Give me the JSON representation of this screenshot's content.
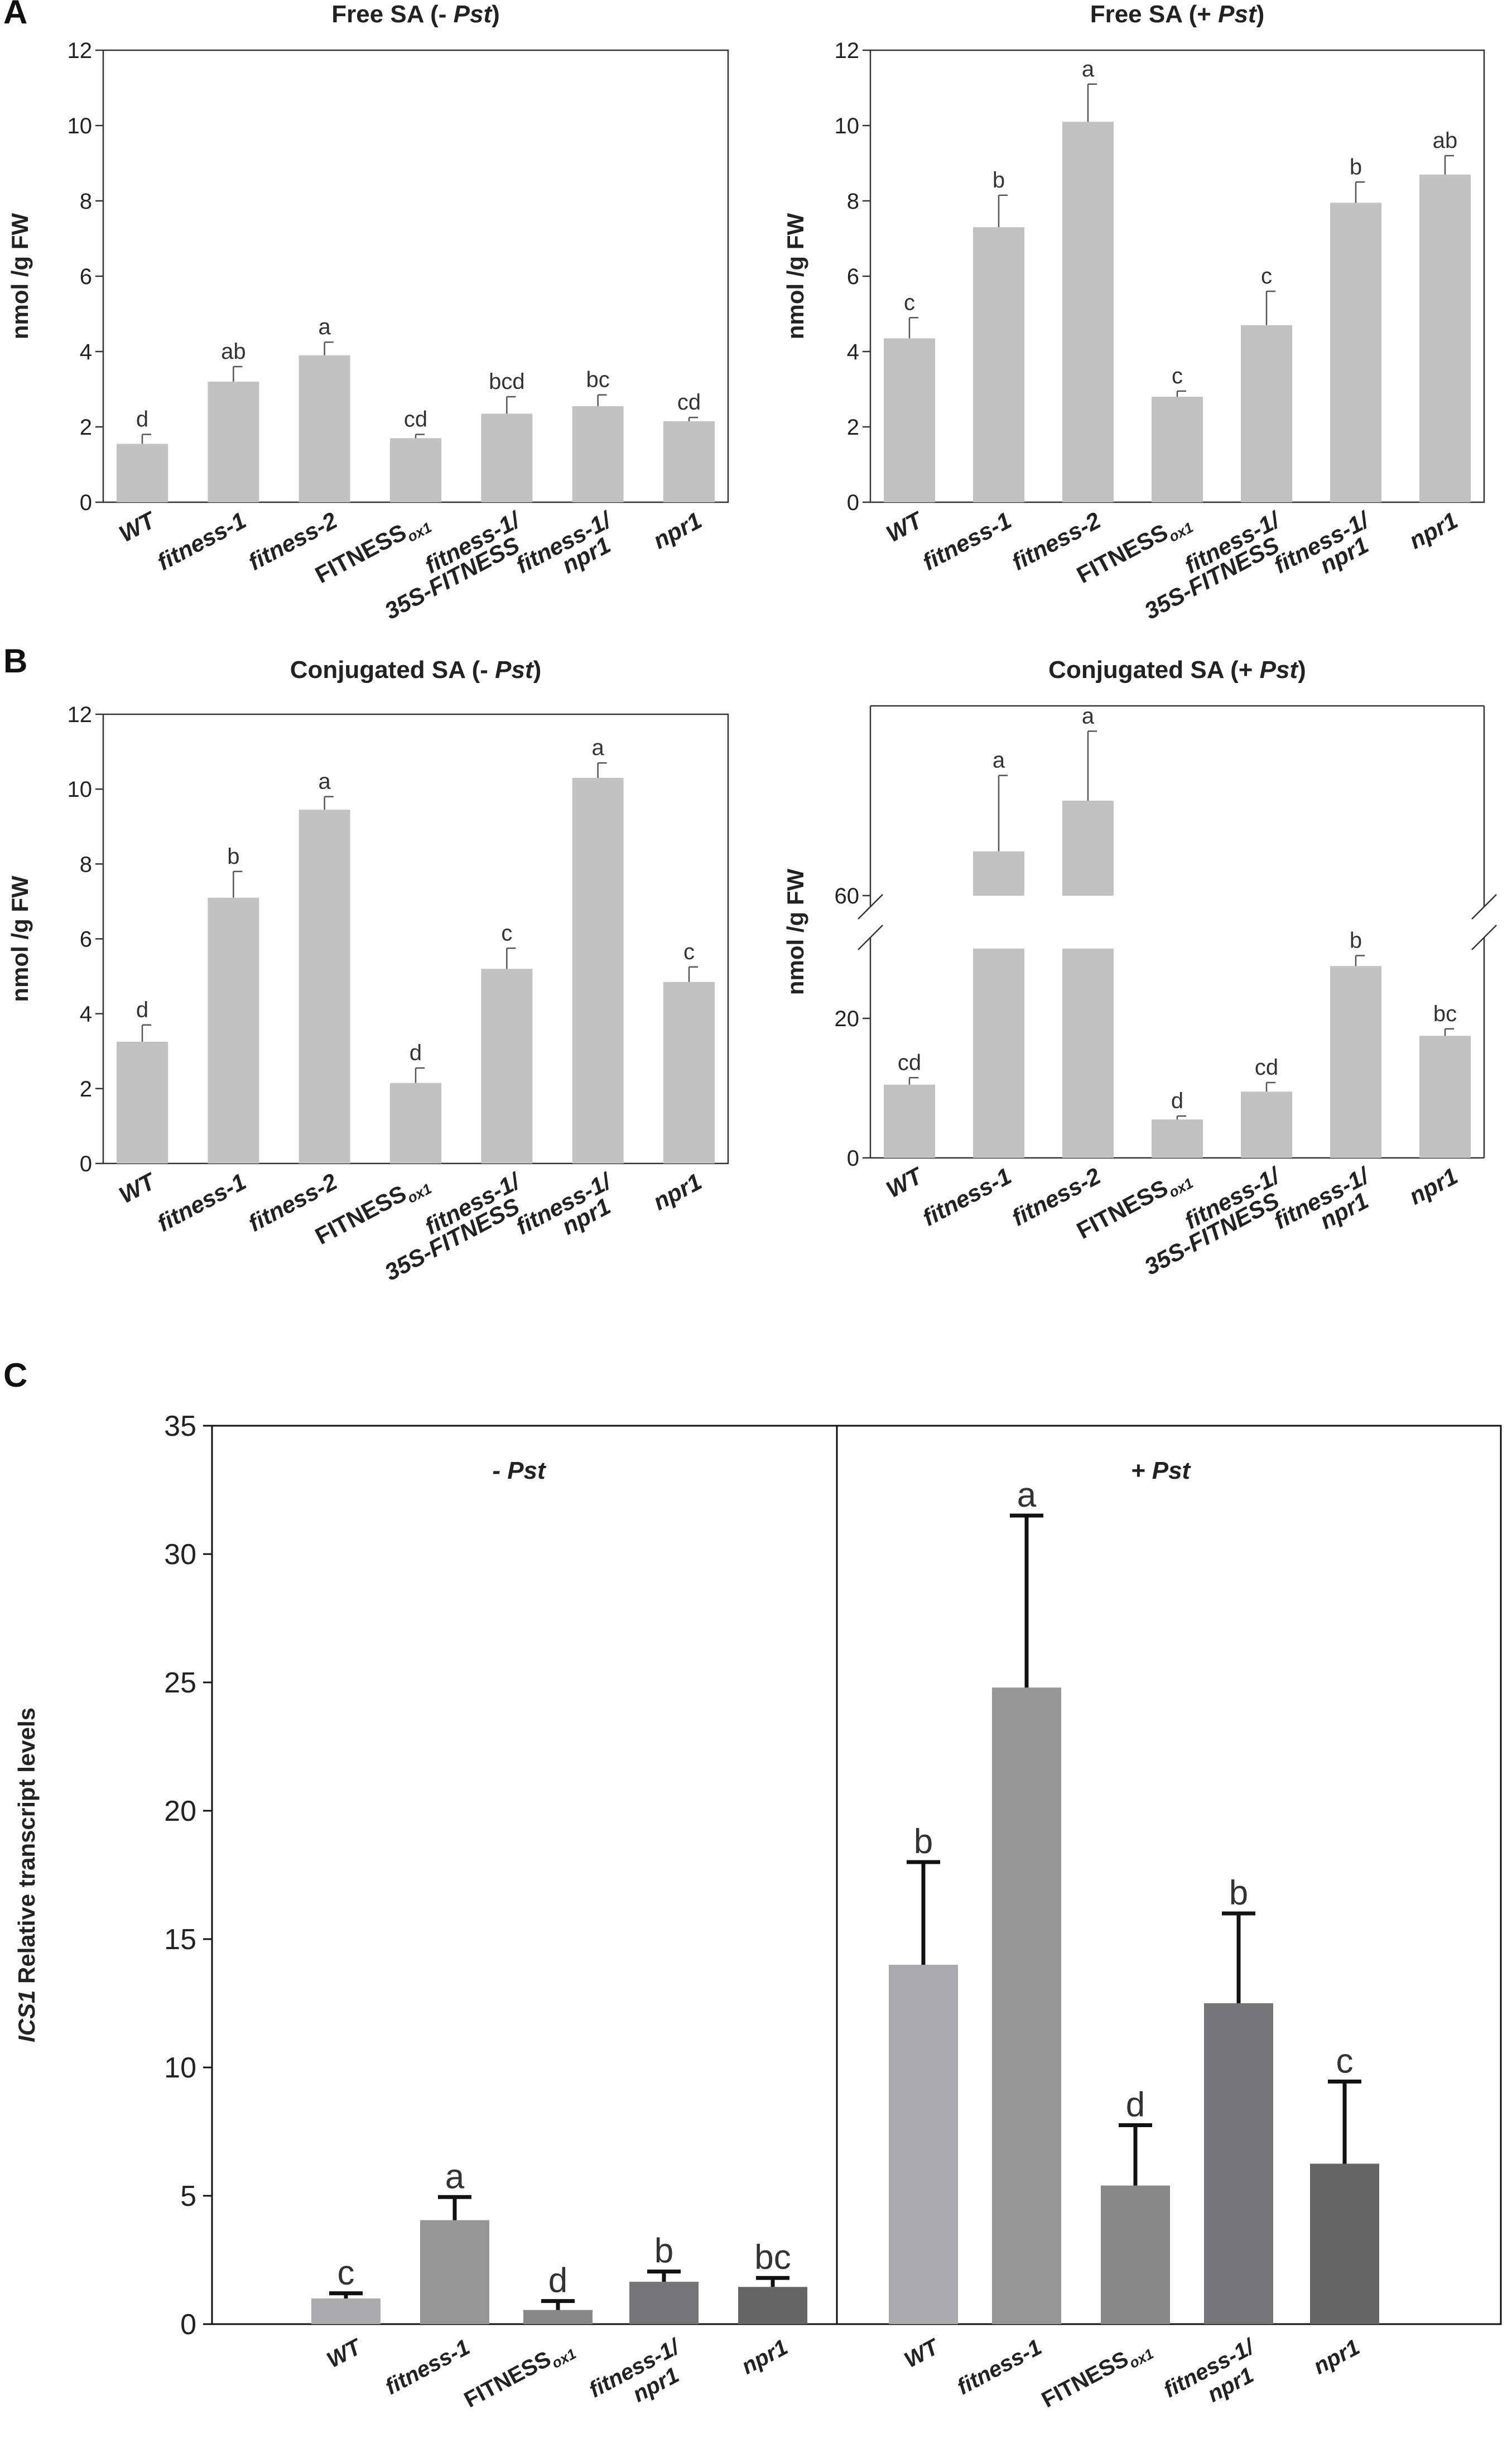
{
  "panel_labels": [
    "A",
    "B",
    "C"
  ],
  "chart_data": [
    {
      "id": "A1",
      "type": "bar",
      "title_main": "Free  SA (- ",
      "title_italic": "Pst",
      "title_end": ")",
      "ylabel": "nmol /g FW",
      "ylim": [
        0,
        12
      ],
      "yticks": [
        0,
        2,
        4,
        6,
        8,
        10,
        12
      ],
      "categories": [
        "WT",
        "fitness-1",
        "fitness-2",
        "FITNESS|ox1",
        "fitness-1/\n35S-FITNESS",
        "fitness-1/\nnpr1",
        "npr1"
      ],
      "values": [
        1.55,
        3.2,
        3.9,
        1.7,
        2.35,
        2.55,
        2.15
      ],
      "errors": [
        0.25,
        0.4,
        0.35,
        0.1,
        0.45,
        0.3,
        0.1
      ],
      "letters": [
        "d",
        "ab",
        "a",
        "cd",
        "bcd",
        "bc",
        "cd"
      ]
    },
    {
      "id": "A2",
      "type": "bar",
      "title_main": "Free  SA (+ ",
      "title_italic": "Pst",
      "title_end": ")",
      "ylabel": "nmol /g FW",
      "ylim": [
        0,
        12
      ],
      "yticks": [
        0,
        2,
        4,
        6,
        8,
        10,
        12
      ],
      "categories": [
        "WT",
        "fitness-1",
        "fitness-2",
        "FITNESS|ox1",
        "fitness-1/\n35S-FITNESS",
        "fitness-1/\nnpr1",
        "npr1"
      ],
      "values": [
        4.35,
        7.3,
        10.1,
        2.8,
        4.7,
        7.95,
        8.7
      ],
      "errors": [
        0.55,
        0.85,
        1.0,
        0.15,
        0.9,
        0.55,
        0.5
      ],
      "letters": [
        "c",
        "b",
        "a",
        "c",
        "c",
        "b",
        "ab"
      ]
    },
    {
      "id": "B1",
      "type": "bar",
      "title_main": "Conjugated SA (- ",
      "title_italic": "Pst",
      "title_end": ")",
      "ylabel": "nmol /g FW",
      "ylim": [
        0,
        12
      ],
      "yticks": [
        0,
        2,
        4,
        6,
        8,
        10,
        12
      ],
      "categories": [
        "WT",
        "fitness-1",
        "fitness-2",
        "FITNESS|ox1",
        "fitness-1/\n35S-FITNESS",
        "fitness-1/\nnpr1",
        "npr1"
      ],
      "values": [
        3.25,
        7.1,
        9.45,
        2.15,
        5.2,
        10.3,
        4.85
      ],
      "errors": [
        0.45,
        0.7,
        0.35,
        0.4,
        0.55,
        0.4,
        0.4
      ],
      "letters": [
        "d",
        "b",
        "a",
        "d",
        "c",
        "a",
        "c"
      ]
    },
    {
      "id": "B2",
      "type": "bar",
      "title_main": "Conjugated SA (+ ",
      "title_italic": "Pst",
      "title_end": ")",
      "ylabel": "nmol /g FW",
      "axis_break": true,
      "yticks_lower": [
        0,
        20
      ],
      "ytick_upper": 60,
      "categories": [
        "WT",
        "fitness-1",
        "fitness-2",
        "FITNESS|ox1",
        "fitness-1/\n35S-FITNESS",
        "fitness-1/\nnpr1",
        "npr1"
      ],
      "values": [
        10.5,
        67,
        75,
        5.5,
        9.5,
        27.5,
        17.5
      ],
      "errors": [
        1.0,
        12,
        11,
        0.5,
        1.3,
        1.5,
        1.0
      ],
      "letters": [
        "cd",
        "a",
        "a",
        "d",
        "cd",
        "b",
        "bc"
      ]
    },
    {
      "id": "C",
      "type": "bar",
      "ylabel_italic": "ICS1",
      "ylabel_rest": " Relative transcript levels",
      "ylim": [
        0,
        35
      ],
      "yticks": [
        0,
        5,
        10,
        15,
        20,
        25,
        30,
        35
      ],
      "groups": [
        {
          "label": "- Pst",
          "label_sign": "- ",
          "label_italic": "Pst",
          "categories": [
            "WT",
            "fitness-1",
            "FITNESS|ox1",
            "fitness-1/\nnpr1",
            "npr1"
          ],
          "values": [
            1.0,
            4.05,
            0.55,
            1.65,
            1.45
          ],
          "errors": [
            0.2,
            0.9,
            0.35,
            0.4,
            0.35
          ],
          "letters": [
            "c",
            "a",
            "d",
            "b",
            "bc"
          ],
          "colors": [
            "#a9aaad",
            "#959698",
            "#878889",
            "#747578",
            "#646567"
          ]
        },
        {
          "label": "+ Pst",
          "label_sign": "+ ",
          "label_italic": "Pst",
          "categories": [
            "WT",
            "fitness-1",
            "FITNESS|ox1",
            "fitness-1/\nnpr1",
            "npr1"
          ],
          "values": [
            14.0,
            24.8,
            5.4,
            12.5,
            6.25
          ],
          "errors": [
            4.0,
            6.7,
            2.35,
            3.5,
            3.2
          ],
          "letters": [
            "b",
            "a",
            "d",
            "b",
            "c"
          ],
          "colors": [
            "#a9aaad",
            "#959698",
            "#878889",
            "#747578",
            "#646567"
          ]
        }
      ]
    }
  ],
  "colors": {
    "bar_light": "#c2c2c2",
    "axis": "#333333"
  }
}
